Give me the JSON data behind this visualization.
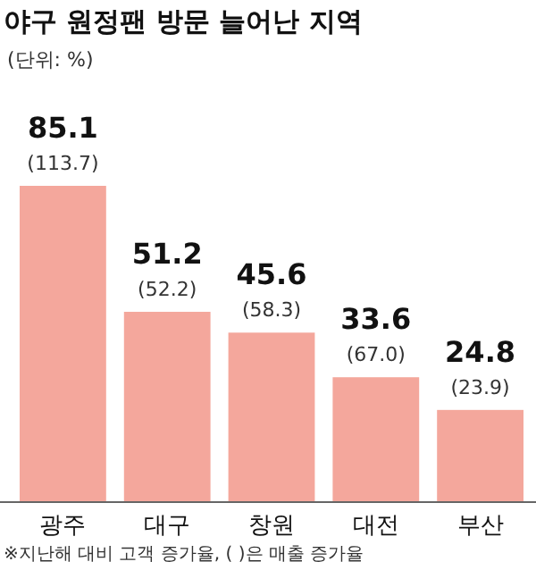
{
  "chart_data": {
    "type": "bar",
    "title": "야구 원정팬 방문 늘어난 지역",
    "subtitle": "(단위: %)",
    "categories": [
      "광주",
      "대구",
      "창원",
      "대전",
      "부산"
    ],
    "values": [
      85.1,
      51.2,
      45.6,
      33.6,
      24.8
    ],
    "color": "#f4a79c",
    "data_labels": true,
    "annotations": [
      {
        "text": "(113.7)",
        "x": "광주",
        "y": 85.1
      },
      {
        "text": "(52.2)",
        "x": "대구",
        "y": 51.2
      },
      {
        "text": "(58.3)",
        "x": "창원",
        "y": 45.6
      },
      {
        "text": "(67.0)",
        "x": "대전",
        "y": 33.6
      },
      {
        "text": "(23.9)",
        "x": "부산",
        "y": 24.8
      },
      "※지난해 대비 고객 증가율, ( )은 매출 증가율"
    ]
  }
}
